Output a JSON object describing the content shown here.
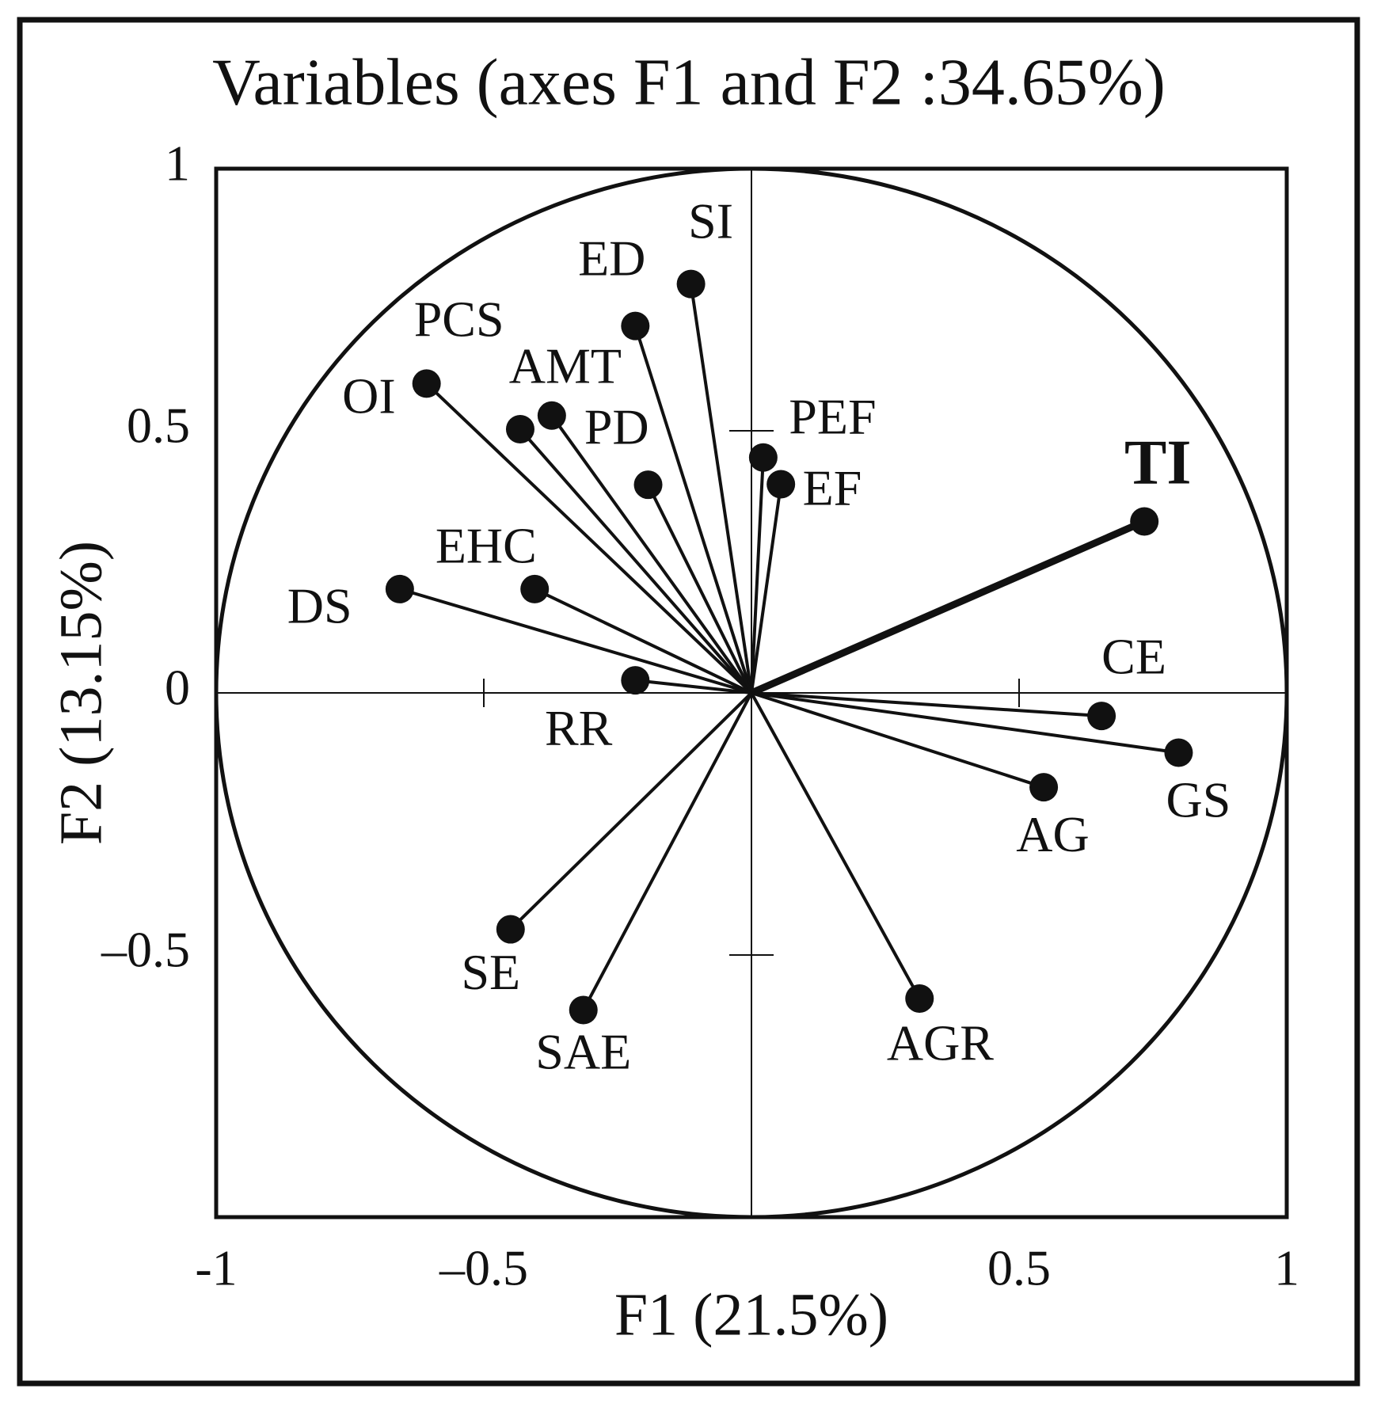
{
  "chart_data": {
    "type": "scatter",
    "title": "Variables (axes F1 and F2 :34.65%)",
    "x_label": "F1 (21.5%)",
    "y_label": "F2 (13.15%)",
    "xlim": [
      -1,
      1
    ],
    "ylim": [
      -1,
      1
    ],
    "xticks": [
      -1,
      {
        "value": -0.5,
        "label": "–0.5"
      },
      0.5,
      1
    ],
    "yticks": [
      1,
      0.5,
      0,
      {
        "value": -0.5,
        "label": "–0.5"
      }
    ],
    "color": "#111111",
    "points": [
      {
        "label": "SI",
        "x": -0.113,
        "y": 0.78
      },
      {
        "label": "ED",
        "x": -0.217,
        "y": 0.7
      },
      {
        "label": "PCS",
        "x": -0.432,
        "y": 0.503
      },
      {
        "label": "AMT",
        "x": -0.373,
        "y": 0.529
      },
      {
        "label": "OI",
        "x": -0.607,
        "y": 0.59
      },
      {
        "label": "PD",
        "x": -0.193,
        "y": 0.397
      },
      {
        "label": "PEF",
        "x": 0.022,
        "y": 0.449
      },
      {
        "label": "EF",
        "x": 0.055,
        "y": 0.398
      },
      {
        "label": "TI",
        "x": 0.734,
        "y": 0.327,
        "bold": true
      },
      {
        "label": "EHC",
        "x": -0.405,
        "y": 0.198
      },
      {
        "label": "DS",
        "x": -0.657,
        "y": 0.198
      },
      {
        "label": "RR",
        "x": -0.217,
        "y": 0.024
      },
      {
        "label": "CE",
        "x": 0.654,
        "y": -0.044
      },
      {
        "label": "GS",
        "x": 0.798,
        "y": -0.114
      },
      {
        "label": "AG",
        "x": 0.546,
        "y": -0.18
      },
      {
        "label": "AGR",
        "x": 0.314,
        "y": -0.583
      },
      {
        "label": "SAE",
        "x": -0.314,
        "y": -0.605
      },
      {
        "label": "SE",
        "x": -0.45,
        "y": -0.451
      }
    ]
  }
}
